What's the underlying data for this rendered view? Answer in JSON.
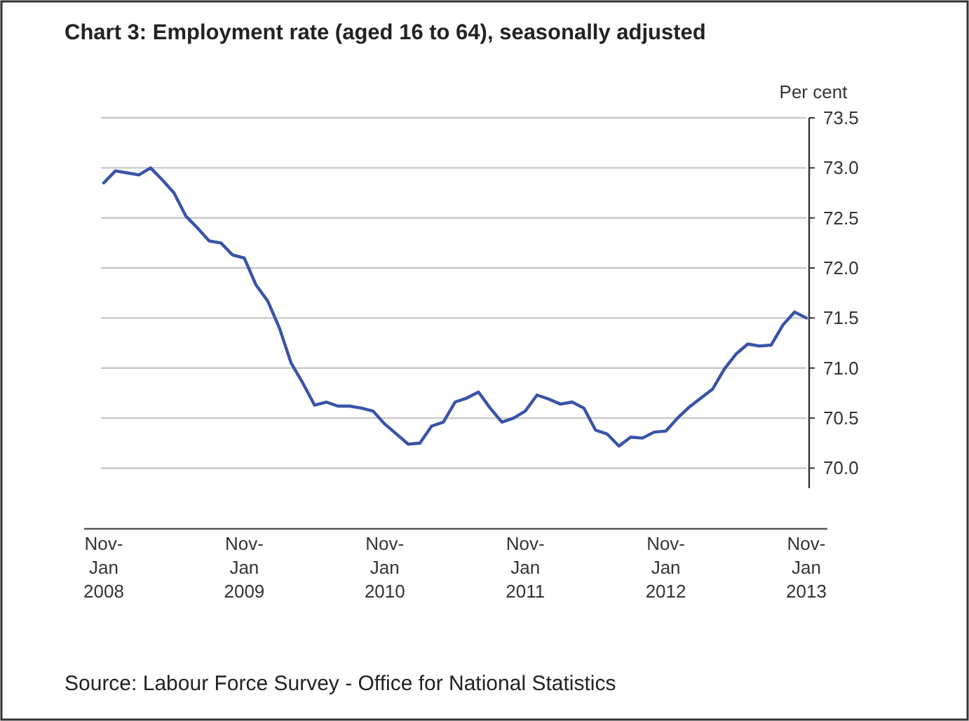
{
  "chart_data": {
    "type": "line",
    "title": "Chart 3: Employment rate (aged 16 to 64), seasonally adjusted",
    "ylabel": "Per cent",
    "annotations": [
      "Source: Labour Force Survey - Office for National Statistics"
    ],
    "categories": [
      "Nov-\nJan\n2008",
      null,
      null,
      null,
      null,
      null,
      null,
      null,
      null,
      null,
      null,
      null,
      "Nov-\nJan\n2009",
      null,
      null,
      null,
      null,
      null,
      null,
      null,
      null,
      null,
      null,
      null,
      "Nov-\nJan\n2010",
      null,
      null,
      null,
      null,
      null,
      null,
      null,
      null,
      null,
      null,
      null,
      "Nov-\nJan\n2011",
      null,
      null,
      null,
      null,
      null,
      null,
      null,
      null,
      null,
      null,
      null,
      "Nov-\nJan\n2012",
      null,
      null,
      null,
      null,
      null,
      null,
      null,
      null,
      null,
      null,
      null,
      "Nov-\nJan\n2013"
    ],
    "series": [
      {
        "color": "#3953a8",
        "values": [
          72.85,
          72.97,
          72.95,
          72.93,
          73.0,
          72.88,
          72.75,
          72.52,
          72.4,
          72.27,
          72.25,
          72.13,
          72.1,
          71.83,
          71.67,
          71.4,
          71.05,
          70.85,
          70.63,
          70.66,
          70.62,
          70.62,
          70.6,
          70.57,
          70.44,
          70.34,
          70.24,
          70.25,
          70.42,
          70.46,
          70.66,
          70.7,
          70.76,
          70.6,
          70.46,
          70.5,
          70.57,
          70.73,
          70.69,
          70.64,
          70.66,
          70.6,
          70.38,
          70.34,
          70.22,
          70.31,
          70.3,
          70.36,
          70.37,
          70.5,
          70.61,
          70.7,
          70.79,
          70.99,
          71.14,
          71.24,
          71.22,
          71.23,
          71.43,
          71.56,
          71.5
        ]
      }
    ],
    "ylim": [
      69.8,
      73.5
    ],
    "yticks": [
      {
        "value": 70,
        "label": "70.0"
      },
      {
        "value": 70.5,
        "label": "70.5"
      },
      {
        "value": 71,
        "label": "71.0"
      },
      {
        "value": 71.5,
        "label": "71.5"
      },
      {
        "value": 72,
        "label": "72.0"
      },
      {
        "value": 72.5,
        "label": "72.5"
      },
      {
        "value": 73,
        "label": "73.0"
      },
      {
        "value": 73.5,
        "label": "73.5"
      }
    ],
    "grid": "y",
    "marker": "none",
    "line_style": "solid"
  }
}
